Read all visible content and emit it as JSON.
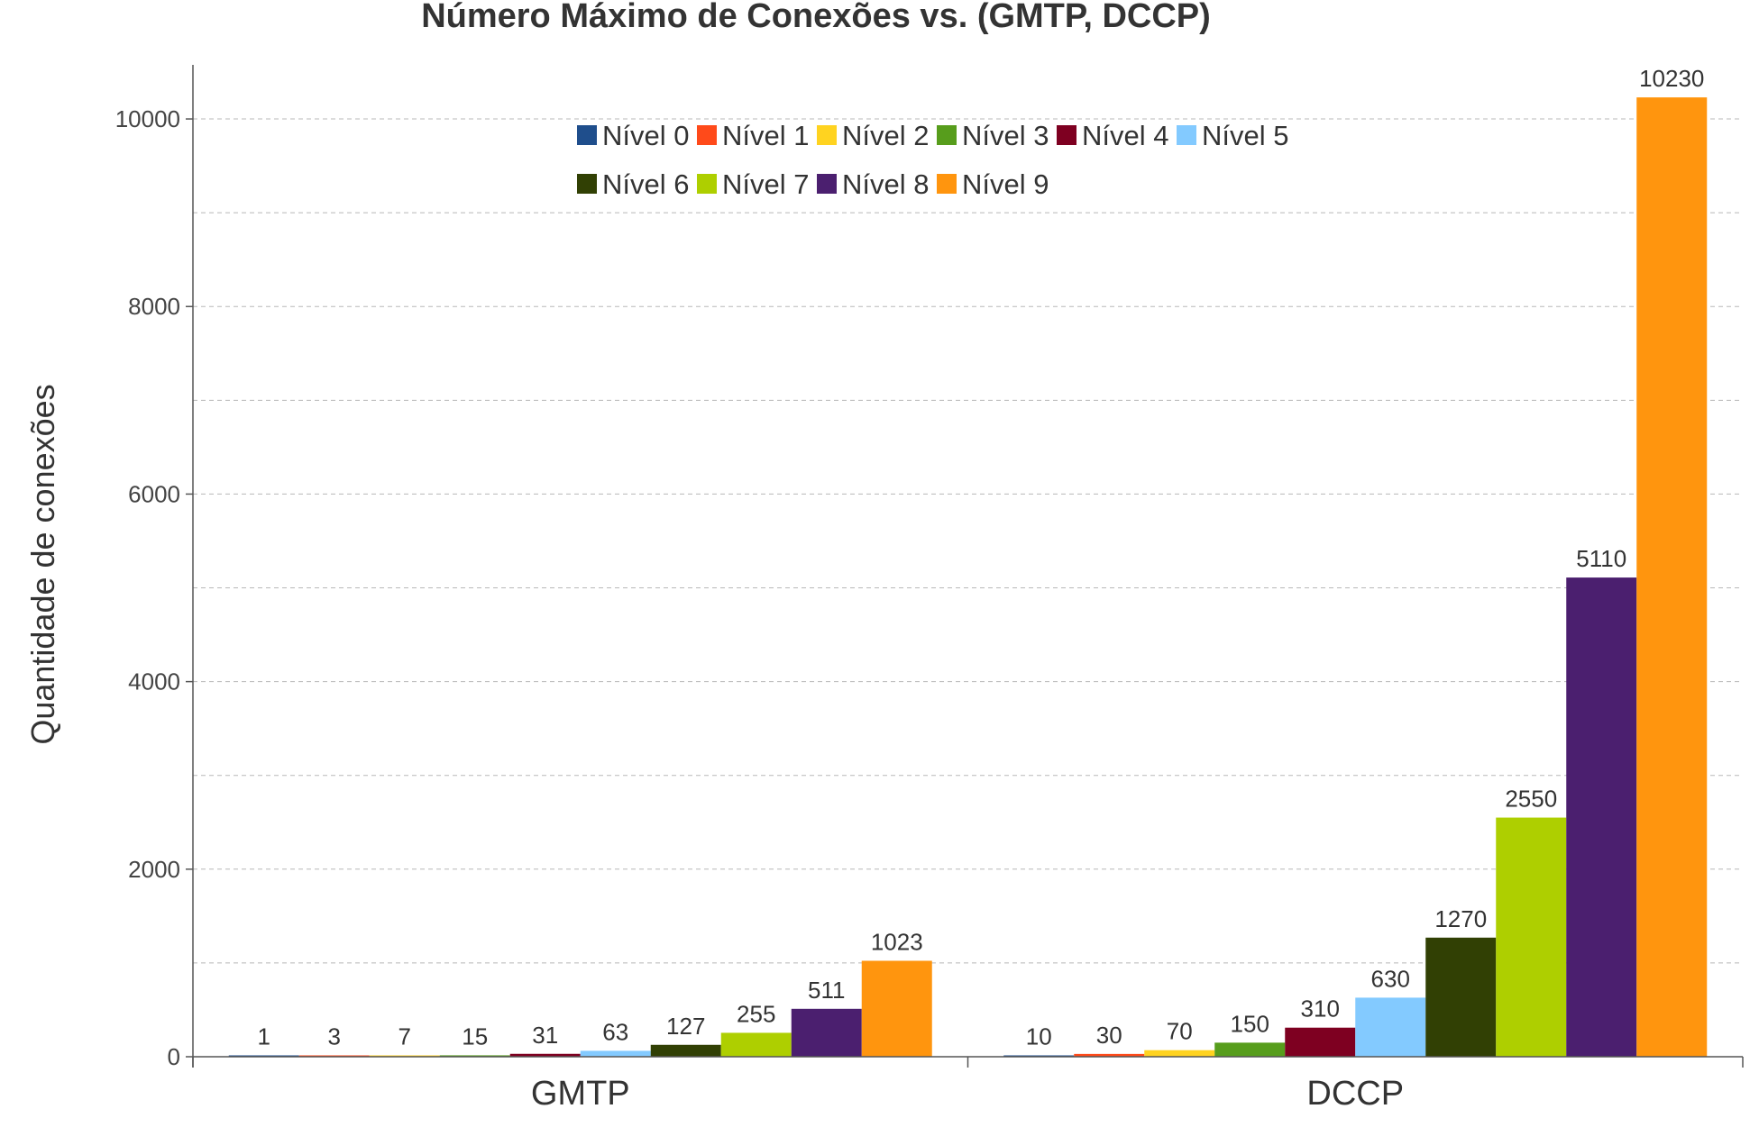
{
  "chart_data": {
    "type": "bar",
    "title": "Número Máximo de Conexões vs. (GMTP, DCCP)",
    "xlabel": "",
    "ylabel": "Quantidade de conexões",
    "categories": [
      "GMTP",
      "DCCP"
    ],
    "ylim": [
      0,
      10500
    ],
    "yticks": [
      0,
      2000,
      4000,
      6000,
      8000,
      10000
    ],
    "grid": true,
    "legend_position": "top-center",
    "series": [
      {
        "name": "Nível 0",
        "color": "#1f4e8c",
        "values": [
          1,
          10
        ]
      },
      {
        "name": "Nível 1",
        "color": "#ff4a1a",
        "values": [
          3,
          30
        ]
      },
      {
        "name": "Nível 2",
        "color": "#ffd320",
        "values": [
          7,
          70
        ]
      },
      {
        "name": "Nível 3",
        "color": "#579d1c",
        "values": [
          15,
          150
        ]
      },
      {
        "name": "Nível 4",
        "color": "#7e0021",
        "values": [
          31,
          310
        ]
      },
      {
        "name": "Nível 5",
        "color": "#83caff",
        "values": [
          63,
          630
        ]
      },
      {
        "name": "Nível 6",
        "color": "#314004",
        "values": [
          127,
          1270
        ]
      },
      {
        "name": "Nível 7",
        "color": "#aecf00",
        "values": [
          255,
          2550
        ]
      },
      {
        "name": "Nível 8",
        "color": "#4b1f6f",
        "values": [
          511,
          5110
        ]
      },
      {
        "name": "Nível 9",
        "color": "#ff950e",
        "values": [
          1023,
          10230
        ]
      }
    ]
  }
}
